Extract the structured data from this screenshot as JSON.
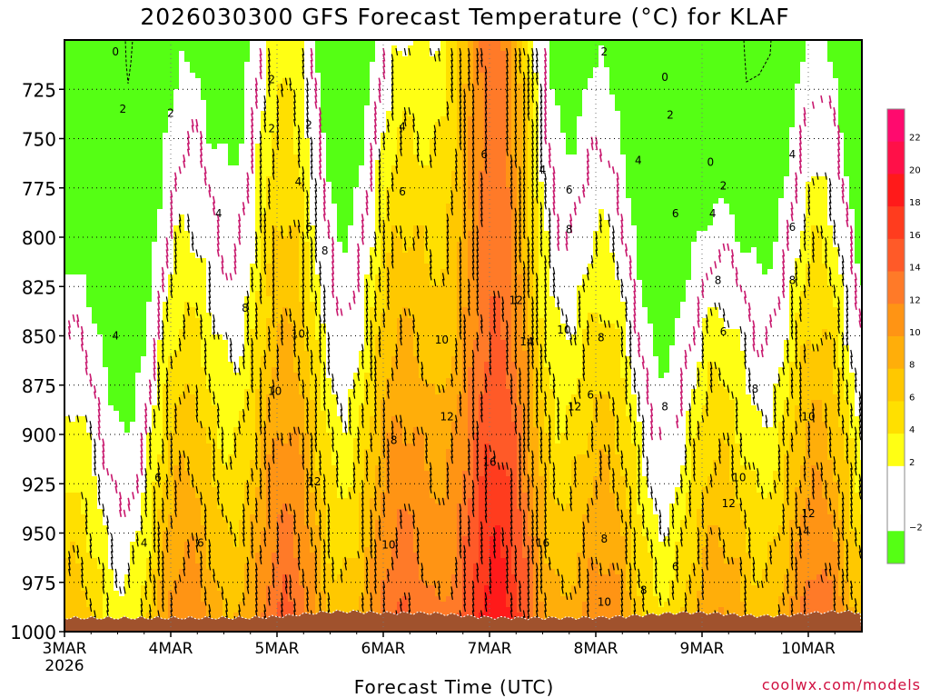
{
  "chart_data": {
    "type": "heatmap",
    "title": "2026030300 GFS Forecast Temperature (°C) for KLAF",
    "xlabel": "Forecast Time (UTC)",
    "ylabel": "",
    "x_ticks": [
      "3MAR",
      "4MAR",
      "5MAR",
      "6MAR",
      "7MAR",
      "8MAR",
      "9MAR",
      "10MAR"
    ],
    "x_year": "2026",
    "y_ticks": [
      725,
      750,
      775,
      800,
      825,
      850,
      875,
      900,
      925,
      950,
      975,
      1000
    ],
    "ylim": [
      1000,
      700
    ],
    "xlim_days": [
      0,
      7.5
    ],
    "colorbar": {
      "labels": [
        "22",
        "20",
        "18",
        "16",
        "14",
        "12",
        "10",
        "8",
        "6",
        "4",
        "2",
        "−2"
      ],
      "bins": [
        {
          "lo": 22,
          "hi": 24,
          "color": "#ff0a6e"
        },
        {
          "lo": 20,
          "hi": 22,
          "color": "#ff1048"
        },
        {
          "lo": 18,
          "hi": 20,
          "color": "#ff1a1a"
        },
        {
          "lo": 16,
          "hi": 18,
          "color": "#ff3c1e"
        },
        {
          "lo": 14,
          "hi": 16,
          "color": "#ff5a28"
        },
        {
          "lo": 12,
          "hi": 14,
          "color": "#ff7a28"
        },
        {
          "lo": 10,
          "hi": 12,
          "color": "#ff9414"
        },
        {
          "lo": 8,
          "hi": 10,
          "color": "#ffae0a"
        },
        {
          "lo": 6,
          "hi": 8,
          "color": "#ffc800"
        },
        {
          "lo": 4,
          "hi": 6,
          "color": "#ffe000"
        },
        {
          "lo": 2,
          "hi": 4,
          "color": "#ffff14"
        },
        {
          "lo": 0,
          "hi": 2,
          "color": "#ffffff"
        },
        {
          "lo": -2,
          "hi": 0,
          "color": "#ffffff"
        },
        {
          "lo": -4,
          "hi": -2,
          "color": "#55ff14"
        }
      ]
    },
    "contour_labels": [
      {
        "t": 0.48,
        "p": 706,
        "v": "0"
      },
      {
        "t": 0.55,
        "p": 735,
        "v": "2"
      },
      {
        "t": 1.0,
        "p": 737,
        "v": "2"
      },
      {
        "t": 1.95,
        "p": 720,
        "v": "2"
      },
      {
        "t": 1.95,
        "p": 745,
        "v": "2"
      },
      {
        "t": 2.3,
        "p": 743,
        "v": "2"
      },
      {
        "t": 5.08,
        "p": 706,
        "v": "2"
      },
      {
        "t": 5.7,
        "p": 738,
        "v": "2"
      },
      {
        "t": 6.2,
        "p": 774,
        "v": "2"
      },
      {
        "t": 5.65,
        "p": 719,
        "v": "0"
      },
      {
        "t": 6.08,
        "p": 762,
        "v": "0"
      },
      {
        "t": 1.45,
        "p": 788,
        "v": "4"
      },
      {
        "t": 2.2,
        "p": 772,
        "v": "4"
      },
      {
        "t": 3.18,
        "p": 744,
        "v": "4"
      },
      {
        "t": 4.5,
        "p": 766,
        "v": "4"
      },
      {
        "t": 5.4,
        "p": 761,
        "v": "4"
      },
      {
        "t": 6.1,
        "p": 788,
        "v": "4"
      },
      {
        "t": 6.85,
        "p": 758,
        "v": "4"
      },
      {
        "t": 0.48,
        "p": 850,
        "v": "4"
      },
      {
        "t": 0.75,
        "p": 955,
        "v": "4"
      },
      {
        "t": 3.18,
        "p": 777,
        "v": "6"
      },
      {
        "t": 2.3,
        "p": 795,
        "v": "6"
      },
      {
        "t": 3.95,
        "p": 758,
        "v": "6"
      },
      {
        "t": 4.75,
        "p": 776,
        "v": "6"
      },
      {
        "t": 5.75,
        "p": 788,
        "v": "6"
      },
      {
        "t": 6.85,
        "p": 795,
        "v": "6"
      },
      {
        "t": 6.2,
        "p": 848,
        "v": "6"
      },
      {
        "t": 4.95,
        "p": 880,
        "v": "6"
      },
      {
        "t": 5.75,
        "p": 967,
        "v": "6"
      },
      {
        "t": 0.88,
        "p": 922,
        "v": "6"
      },
      {
        "t": 1.28,
        "p": 955,
        "v": "6"
      },
      {
        "t": 2.45,
        "p": 807,
        "v": "8"
      },
      {
        "t": 1.7,
        "p": 836,
        "v": "8"
      },
      {
        "t": 4.75,
        "p": 796,
        "v": "8"
      },
      {
        "t": 6.15,
        "p": 822,
        "v": "8"
      },
      {
        "t": 6.85,
        "p": 822,
        "v": "8"
      },
      {
        "t": 5.05,
        "p": 851,
        "v": "8"
      },
      {
        "t": 5.65,
        "p": 886,
        "v": "8"
      },
      {
        "t": 6.5,
        "p": 877,
        "v": "8"
      },
      {
        "t": 3.1,
        "p": 903,
        "v": "8"
      },
      {
        "t": 5.08,
        "p": 953,
        "v": "8"
      },
      {
        "t": 5.45,
        "p": 979,
        "v": "8"
      },
      {
        "t": 2.2,
        "p": 849,
        "v": "10"
      },
      {
        "t": 1.98,
        "p": 878,
        "v": "10"
      },
      {
        "t": 3.55,
        "p": 852,
        "v": "10"
      },
      {
        "t": 4.7,
        "p": 847,
        "v": "10"
      },
      {
        "t": 3.05,
        "p": 956,
        "v": "10"
      },
      {
        "t": 6.35,
        "p": 922,
        "v": "10"
      },
      {
        "t": 7.0,
        "p": 891,
        "v": "10"
      },
      {
        "t": 5.08,
        "p": 985,
        "v": "10"
      },
      {
        "t": 4.25,
        "p": 832,
        "v": "12"
      },
      {
        "t": 2.35,
        "p": 924,
        "v": "12"
      },
      {
        "t": 3.6,
        "p": 891,
        "v": "12"
      },
      {
        "t": 4.8,
        "p": 886,
        "v": "12"
      },
      {
        "t": 6.25,
        "p": 935,
        "v": "12"
      },
      {
        "t": 7.0,
        "p": 940,
        "v": "12"
      },
      {
        "t": 4.35,
        "p": 853,
        "v": "14"
      },
      {
        "t": 6.95,
        "p": 949,
        "v": "14"
      },
      {
        "t": 4.0,
        "p": 914,
        "v": "16"
      },
      {
        "t": 4.5,
        "p": 955,
        "v": "16"
      }
    ]
  },
  "footer": {
    "credit": "coolwx.com/models"
  }
}
